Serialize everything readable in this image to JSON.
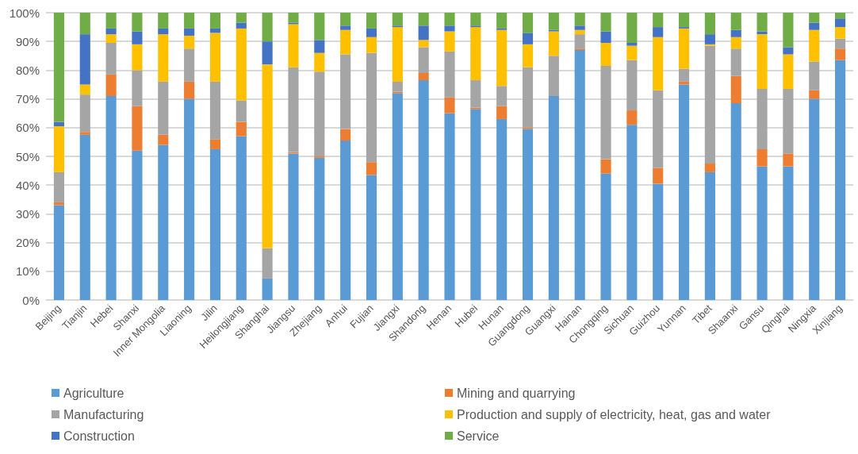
{
  "chart_data": {
    "type": "bar",
    "stacked": true,
    "categories": [
      "Beijing",
      "Tianjin",
      "Hebei",
      "Shanxi",
      "Inner Mongolia",
      "Liaoning",
      "Jilin",
      "Heilongjiang",
      "Shanghai",
      "Jiangsu",
      "Zhejiang",
      "Anhui",
      "Fujian",
      "Jiangxi",
      "Shandong",
      "Henan",
      "Hubei",
      "Hunan",
      "Guangdong",
      "Guangxi",
      "Hainan",
      "Chongqing",
      "Sichuan",
      "Guizhou",
      "Yunnan",
      "Tibet",
      "Shaanxi",
      "Gansu",
      "Qinghai",
      "Ningxia",
      "Xinjiang"
    ],
    "series": [
      {
        "name": "Agriculture",
        "color": "#5b9bd5",
        "values": [
          33,
          57.5,
          71,
          52,
          54,
          70,
          52.5,
          57,
          7.5,
          51,
          49.5,
          55.5,
          43.5,
          72,
          76.5,
          65,
          66.5,
          63,
          59.5,
          71,
          87,
          44,
          61,
          40.5,
          75,
          44.5,
          68.5,
          46.5,
          46.5,
          70,
          83.5
        ]
      },
      {
        "name": "Mining and quarrying",
        "color": "#ed7d31",
        "values": [
          1,
          1,
          7.5,
          15.5,
          3.5,
          6,
          3.5,
          5,
          0,
          0.5,
          0.5,
          4,
          4.5,
          0.5,
          2.5,
          5.5,
          0.5,
          4.5,
          0.5,
          0,
          0.5,
          5,
          5,
          5.5,
          1,
          3,
          9.5,
          6,
          4.5,
          3,
          4
        ]
      },
      {
        "name": "Manufacturing",
        "color": "#a5a5a5",
        "values": [
          10.5,
          13,
          11,
          12.5,
          18.5,
          11.5,
          20,
          7.5,
          10.5,
          29.5,
          29.5,
          26,
          38,
          3.5,
          9,
          16,
          9.5,
          7,
          21,
          14,
          5,
          32.5,
          17.5,
          27,
          4.5,
          41,
          9.5,
          21,
          22.5,
          10,
          3.5
        ]
      },
      {
        "name": "Production and supply of electricity, heat, gas and water",
        "color": "#ffc000",
        "values": [
          16,
          3.5,
          3,
          9,
          16.5,
          4.5,
          17,
          25,
          64,
          15,
          6.5,
          8.5,
          5.5,
          19,
          2.5,
          7,
          18.5,
          19.5,
          8,
          8.5,
          1.5,
          8,
          5,
          18.5,
          14,
          0.5,
          4,
          19,
          12,
          11,
          4
        ]
      },
      {
        "name": "Construction",
        "color": "#4472c4",
        "values": [
          1.5,
          17.5,
          2,
          4.5,
          2,
          2.5,
          1.5,
          2,
          8,
          0.5,
          4.5,
          1.5,
          3,
          0.5,
          5,
          2,
          0.5,
          0.5,
          4,
          0.5,
          1.5,
          4,
          1,
          3.5,
          0.5,
          3.5,
          2.5,
          1,
          2.5,
          2.5,
          3
        ]
      },
      {
        "name": "Service",
        "color": "#70ad47",
        "values": [
          38,
          7.5,
          5.5,
          6.5,
          5.5,
          5.5,
          5.5,
          3.5,
          10,
          3.5,
          9.5,
          4.5,
          5.5,
          4.5,
          4.5,
          4.5,
          4.5,
          5.5,
          7,
          6,
          4.5,
          6.5,
          10.5,
          5,
          5,
          7.5,
          6,
          6.5,
          12,
          3.5,
          2
        ]
      }
    ],
    "ylim": [
      0,
      100
    ],
    "yticks": [
      {
        "value": 0,
        "label": "0%"
      },
      {
        "value": 10,
        "label": "10%"
      },
      {
        "value": 20,
        "label": "20%"
      },
      {
        "value": 30,
        "label": "30%"
      },
      {
        "value": 40,
        "label": "40%"
      },
      {
        "value": 50,
        "label": "50%"
      },
      {
        "value": 60,
        "label": "60%"
      },
      {
        "value": 70,
        "label": "70%"
      },
      {
        "value": 80,
        "label": "80%"
      },
      {
        "value": 90,
        "label": "90%"
      },
      {
        "value": 100,
        "label": "100%"
      }
    ],
    "grid": "y",
    "legend": "bottom"
  }
}
